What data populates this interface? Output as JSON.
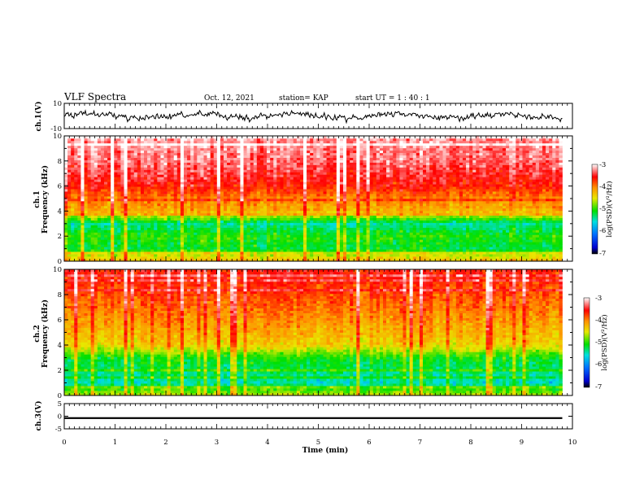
{
  "header": {
    "title": "VLF Spectra",
    "date": "Oct. 12, 2021",
    "station": "station= KAP",
    "start_ut": "start  UT  =   1 : 40 : 1"
  },
  "chart_data": [
    {
      "type": "line",
      "panel": "ch1-waveform",
      "ylabel": "ch.1(V)",
      "ylim": [
        -10,
        10
      ],
      "yticks": [
        "10",
        "-10"
      ],
      "x_range_min": [
        0,
        9.8
      ],
      "signal_range_v": [
        -7,
        7
      ]
    },
    {
      "type": "heatmap",
      "panel": "ch1-spectrogram",
      "ylabel_line1": "ch.1",
      "ylabel_line2": "Frequency (kHz)",
      "ylim": [
        0,
        10
      ],
      "yticks": [
        "0",
        "2",
        "4",
        "6",
        "8",
        "10"
      ],
      "x_range_min": [
        0,
        9.8
      ],
      "colorbar": {
        "label": "log(PSD)(V²/Hz)",
        "range": [
          -7,
          -3
        ],
        "ticks": [
          "-3",
          "-4",
          "-5",
          "-6",
          "-7"
        ]
      },
      "psd_profile": [
        {
          "f_khz": 0.0,
          "log_psd": -4.2
        },
        {
          "f_khz": 0.5,
          "log_psd": -4.6
        },
        {
          "f_khz": 1.0,
          "log_psd": -5.2
        },
        {
          "f_khz": 2.0,
          "log_psd": -5.0
        },
        {
          "f_khz": 3.0,
          "log_psd": -5.4
        },
        {
          "f_khz": 3.5,
          "log_psd": -4.8
        },
        {
          "f_khz": 4.0,
          "log_psd": -4.2
        },
        {
          "f_khz": 5.0,
          "log_psd": -4.0
        },
        {
          "f_khz": 6.0,
          "log_psd": -3.6
        },
        {
          "f_khz": 8.0,
          "log_psd": -3.3
        },
        {
          "f_khz": 10.0,
          "log_psd": -3.2
        }
      ]
    },
    {
      "type": "heatmap",
      "panel": "ch2-spectrogram",
      "ylabel_line1": "ch.2",
      "ylabel_line2": "Frequency (kHz)",
      "ylim": [
        0,
        10
      ],
      "yticks": [
        "0",
        "2",
        "4",
        "6",
        "8",
        "10"
      ],
      "x_range_min": [
        0,
        9.8
      ],
      "colorbar": {
        "label": "log(PSD)(V²/Hz)",
        "range": [
          -7,
          -3
        ],
        "ticks": [
          "-3",
          "-4",
          "-5",
          "-6",
          "-7"
        ]
      },
      "psd_profile": [
        {
          "f_khz": 0.0,
          "log_psd": -4.6
        },
        {
          "f_khz": 0.5,
          "log_psd": -5.0
        },
        {
          "f_khz": 1.0,
          "log_psd": -5.5
        },
        {
          "f_khz": 2.0,
          "log_psd": -5.3
        },
        {
          "f_khz": 3.0,
          "log_psd": -5.1
        },
        {
          "f_khz": 4.0,
          "log_psd": -4.4
        },
        {
          "f_khz": 6.0,
          "log_psd": -4.1
        },
        {
          "f_khz": 8.0,
          "log_psd": -3.8
        },
        {
          "f_khz": 10.0,
          "log_psd": -3.6
        }
      ]
    },
    {
      "type": "line",
      "panel": "ch3-waveform",
      "ylabel": "ch.3(V)",
      "ylim": [
        -5,
        5
      ],
      "yticks": [
        "5",
        "0",
        "-5"
      ],
      "x_range_min": [
        0,
        9.8
      ],
      "signal_range_v": [
        -1.1,
        -0.4
      ]
    }
  ],
  "x_axis": {
    "label": "Time (min)",
    "ticks": [
      "0",
      "1",
      "2",
      "3",
      "4",
      "5",
      "6",
      "7",
      "8",
      "9",
      "10"
    ],
    "range": [
      0,
      10
    ]
  }
}
